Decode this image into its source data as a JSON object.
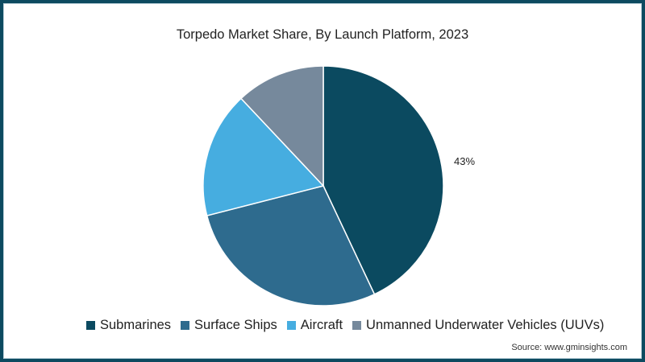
{
  "chart_data": {
    "type": "pie",
    "title": "Torpedo Market Share, By Launch Platform, 2023",
    "categories": [
      "Submarines",
      "Surface Ships",
      "Aircraft",
      "Unmanned Underwater Vehicles (UUVs)"
    ],
    "values": [
      43,
      28,
      17,
      12
    ],
    "colors": [
      "#0b4a60",
      "#2e6b8e",
      "#46ade0",
      "#76899c"
    ],
    "data_labels": [
      {
        "category": "Submarines",
        "text": "43%"
      }
    ],
    "legend_position": "bottom",
    "start_angle": "12 o'clock, clockwise"
  },
  "title": "Torpedo Market Share, By Launch Platform, 2023",
  "label_submarines": "43%",
  "legend": [
    {
      "label": "Submarines",
      "color": "#0b4a60"
    },
    {
      "label": "Surface Ships",
      "color": "#2e6b8e"
    },
    {
      "label": "Aircraft",
      "color": "#46ade0"
    },
    {
      "label": "Unmanned Underwater Vehicles (UUVs)",
      "color": "#76899c"
    }
  ],
  "source": "Source: www.gminsights.com",
  "frame_color": "#0d4a60"
}
